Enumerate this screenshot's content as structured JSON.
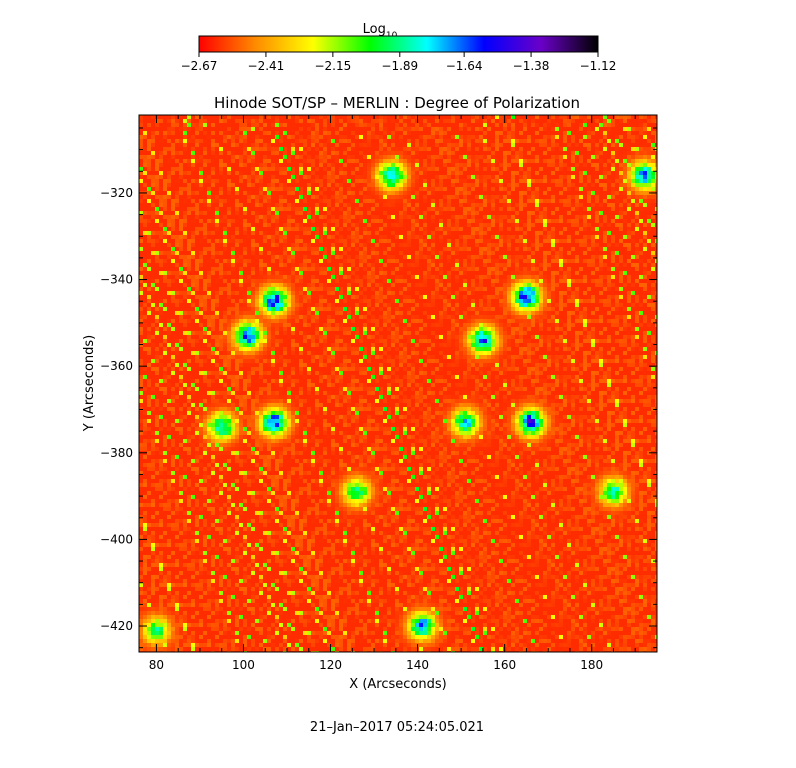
{
  "chart_data": {
    "type": "heatmap",
    "title": "Hinode SOT/SP – MERLIN : Degree of Polarization",
    "xlabel": "X (Arcseconds)",
    "ylabel": "Y (Arcseconds)",
    "xlim": [
      76,
      195
    ],
    "ylim": [
      -426,
      -302
    ],
    "x_ticks": [
      80,
      100,
      120,
      140,
      160,
      180
    ],
    "x_tick_labels": [
      "80",
      "100",
      "120",
      "140",
      "160",
      "180"
    ],
    "y_ticks": [
      -320,
      -340,
      -360,
      -380,
      -400,
      -420
    ],
    "y_tick_labels": [
      "−320",
      "−340",
      "−360",
      "−380",
      "−400",
      "−420"
    ],
    "colorbar": {
      "label_main": "Log",
      "label_sub": "10",
      "min": -2.67,
      "max": -1.12,
      "ticks": [
        -2.67,
        -2.41,
        -2.15,
        -1.89,
        -1.64,
        -1.38,
        -1.12
      ],
      "tick_labels": [
        "−2.67",
        "−2.41",
        "−2.15",
        "−1.89",
        "−1.64",
        "−1.38",
        "−1.12"
      ],
      "colors": [
        "#ff0000",
        "#ff8c00",
        "#ffff00",
        "#00ff00",
        "#00ffff",
        "#0000ff",
        "#6a00c8",
        "#000000"
      ]
    },
    "background_level": -2.6,
    "concentrations": [
      {
        "x": 107,
        "y": -345,
        "value": -1.4
      },
      {
        "x": 101,
        "y": -353,
        "value": -1.5
      },
      {
        "x": 165,
        "y": -344,
        "value": -1.4
      },
      {
        "x": 155,
        "y": -354,
        "value": -1.55
      },
      {
        "x": 107,
        "y": -373,
        "value": -1.45
      },
      {
        "x": 95,
        "y": -374,
        "value": -1.7
      },
      {
        "x": 166,
        "y": -373,
        "value": -1.45
      },
      {
        "x": 151,
        "y": -373,
        "value": -1.7
      },
      {
        "x": 134,
        "y": -316,
        "value": -1.6
      },
      {
        "x": 192,
        "y": -316,
        "value": -1.6
      },
      {
        "x": 141,
        "y": -420,
        "value": -1.6
      },
      {
        "x": 80,
        "y": -421,
        "value": -1.9
      },
      {
        "x": 185,
        "y": -389,
        "value": -1.8
      },
      {
        "x": 126,
        "y": -389,
        "value": -1.8
      }
    ],
    "timestamp": "21–Jan–2017 05:24:05.021"
  }
}
